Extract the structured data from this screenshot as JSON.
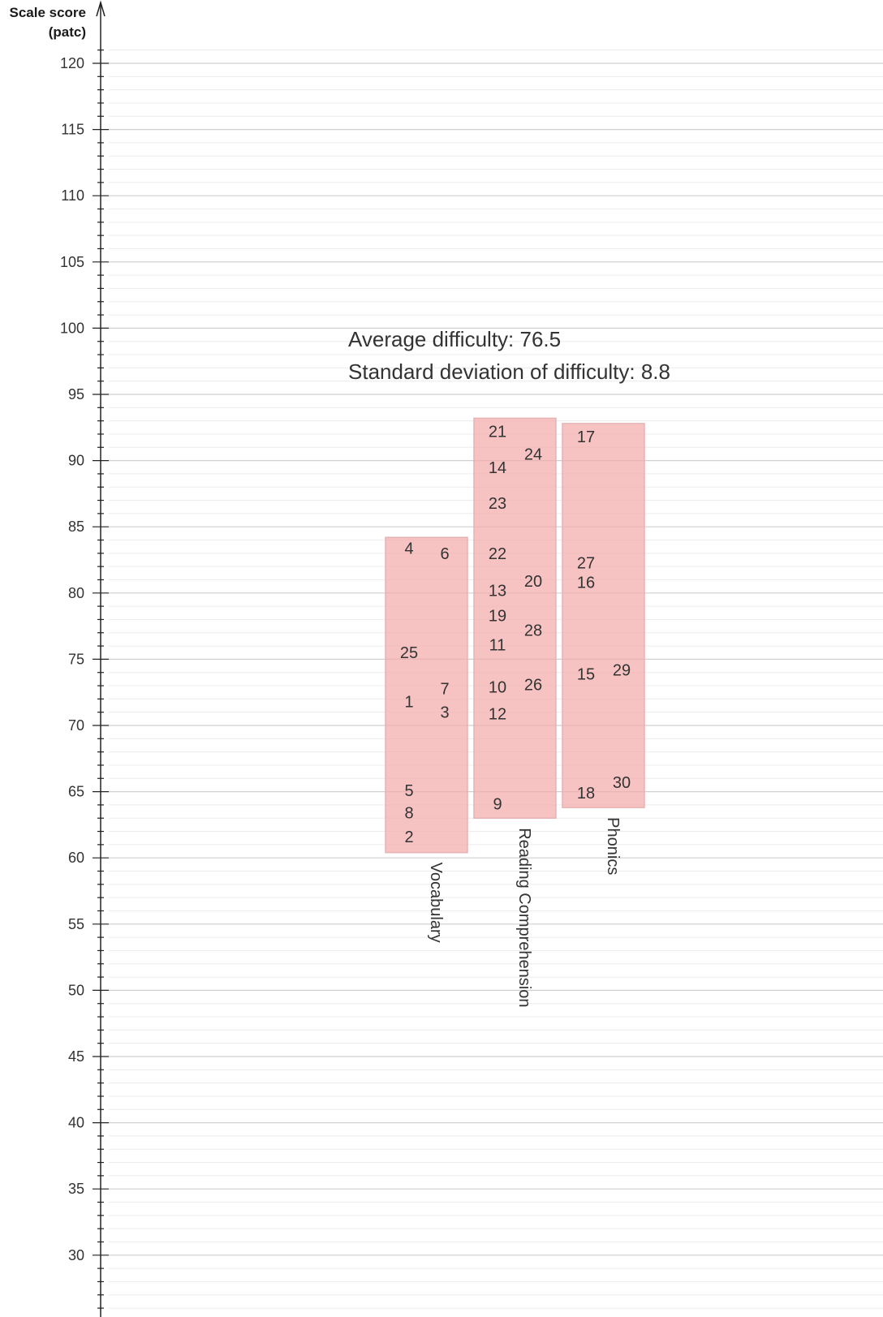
{
  "chart_data": {
    "type": "scatter",
    "ylabel_line1": "Scale score",
    "ylabel_line2": "(patc)",
    "ylim": [
      26,
      124
    ],
    "y_ticks": [
      30,
      35,
      40,
      45,
      50,
      55,
      60,
      65,
      70,
      75,
      80,
      85,
      90,
      95,
      100,
      105,
      110,
      115,
      120
    ],
    "annotations": {
      "average": "Average difficulty: 76.5",
      "sd": "Standard deviation of difficulty: 8.8"
    },
    "box_color": "#f4aaaa",
    "groups": [
      {
        "name": "Vocabulary",
        "range": [
          60.4,
          84.2
        ],
        "items": [
          {
            "label": "4",
            "column": 1,
            "y": 83.4
          },
          {
            "label": "6",
            "column": 2,
            "y": 83.0
          },
          {
            "label": "25",
            "column": 1,
            "y": 75.5
          },
          {
            "label": "7",
            "column": 2,
            "y": 72.8
          },
          {
            "label": "1",
            "column": 1,
            "y": 71.8
          },
          {
            "label": "3",
            "column": 2,
            "y": 71.0
          },
          {
            "label": "5",
            "column": 1,
            "y": 65.1
          },
          {
            "label": "8",
            "column": 1,
            "y": 63.4
          },
          {
            "label": "2",
            "column": 1,
            "y": 61.6
          }
        ]
      },
      {
        "name": "Reading Comprehension",
        "range": [
          63.0,
          93.2
        ],
        "items": [
          {
            "label": "21",
            "column": 1,
            "y": 92.2
          },
          {
            "label": "24",
            "column": 2,
            "y": 90.5
          },
          {
            "label": "14",
            "column": 1,
            "y": 89.5
          },
          {
            "label": "23",
            "column": 1,
            "y": 86.8
          },
          {
            "label": "22",
            "column": 1,
            "y": 83.0
          },
          {
            "label": "20",
            "column": 2,
            "y": 80.9
          },
          {
            "label": "13",
            "column": 1,
            "y": 80.2
          },
          {
            "label": "19",
            "column": 1,
            "y": 78.3
          },
          {
            "label": "28",
            "column": 2,
            "y": 77.2
          },
          {
            "label": "11",
            "column": 1,
            "y": 76.1
          },
          {
            "label": "10",
            "column": 1,
            "y": 72.9
          },
          {
            "label": "26",
            "column": 2,
            "y": 73.1
          },
          {
            "label": "12",
            "column": 1,
            "y": 70.9
          },
          {
            "label": "9",
            "column": 1,
            "y": 64.1
          }
        ]
      },
      {
        "name": "Phonics",
        "range": [
          63.8,
          92.8
        ],
        "items": [
          {
            "label": "17",
            "column": 1,
            "y": 91.8
          },
          {
            "label": "27",
            "column": 1,
            "y": 82.3
          },
          {
            "label": "16",
            "column": 1,
            "y": 80.8
          },
          {
            "label": "29",
            "column": 2,
            "y": 74.2
          },
          {
            "label": "15",
            "column": 1,
            "y": 73.9
          },
          {
            "label": "30",
            "column": 2,
            "y": 65.7
          },
          {
            "label": "18",
            "column": 1,
            "y": 64.9
          }
        ]
      }
    ]
  }
}
